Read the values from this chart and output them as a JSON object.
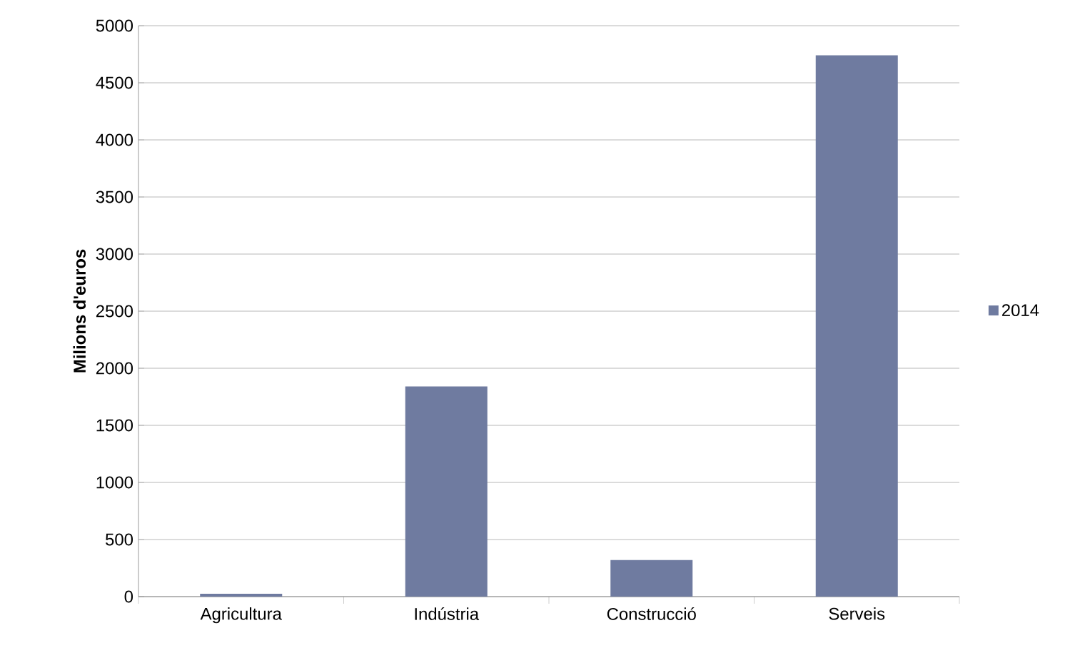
{
  "chart_data": {
    "type": "bar",
    "ylabel": "Milions d'euros",
    "categories": [
      "Agricultura",
      "Indústria",
      "Construcció",
      "Serveis"
    ],
    "series": [
      {
        "name": "2014",
        "color": "#6f7ba0",
        "values": [
          25,
          1840,
          320,
          4740
        ]
      }
    ],
    "ylim": [
      0,
      5000
    ],
    "yticks": [
      0,
      500,
      1000,
      1500,
      2000,
      2500,
      3000,
      3500,
      4000,
      4500,
      5000
    ],
    "grid": "y",
    "legend": "right"
  }
}
